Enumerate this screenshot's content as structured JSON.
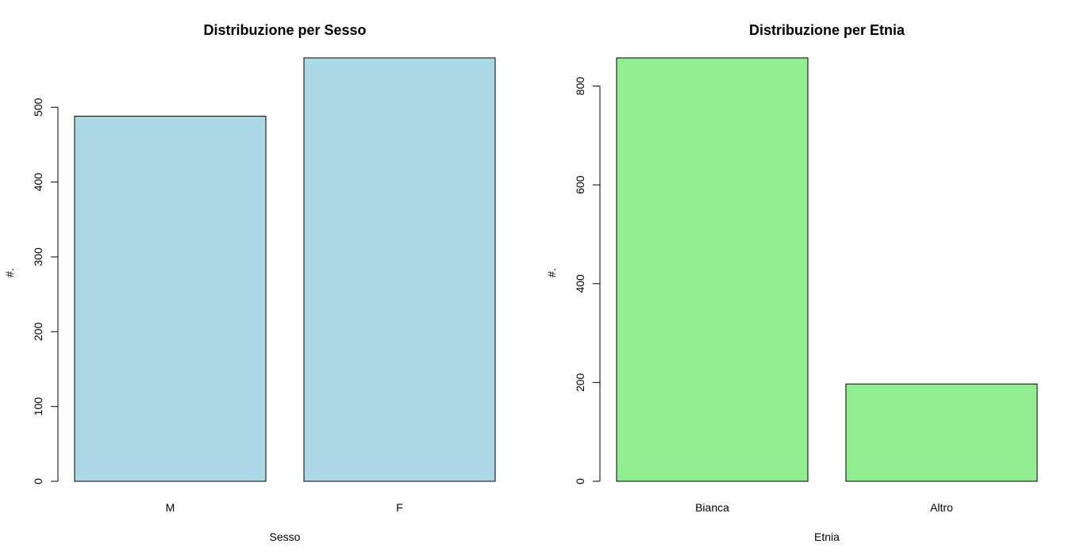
{
  "chart_data": [
    {
      "type": "bar",
      "title": "Distribuzione per Sesso",
      "xlabel": "Sesso",
      "ylabel": "#.",
      "categories": [
        "M",
        "F"
      ],
      "values": [
        488,
        566
      ],
      "ylim": [
        0,
        566
      ],
      "yticks": [
        0,
        100,
        200,
        300,
        400,
        500
      ],
      "yticks_labels": [
        "0",
        "100",
        "200",
        "300",
        "400",
        "500"
      ],
      "bar_color": "#ADD8E6",
      "grid": false,
      "legend": "none"
    },
    {
      "type": "bar",
      "title": "Distribuzione per Etnia",
      "xlabel": "Etnia",
      "ylabel": "#.",
      "categories": [
        "Bianca",
        "Altro"
      ],
      "values": [
        857,
        197
      ],
      "ylim": [
        0,
        857
      ],
      "yticks": [
        0,
        200,
        400,
        600,
        800
      ],
      "yticks_labels": [
        "0",
        "200",
        "400",
        "600",
        "800"
      ],
      "bar_color": "#90EE90",
      "grid": false,
      "legend": "none"
    }
  ]
}
